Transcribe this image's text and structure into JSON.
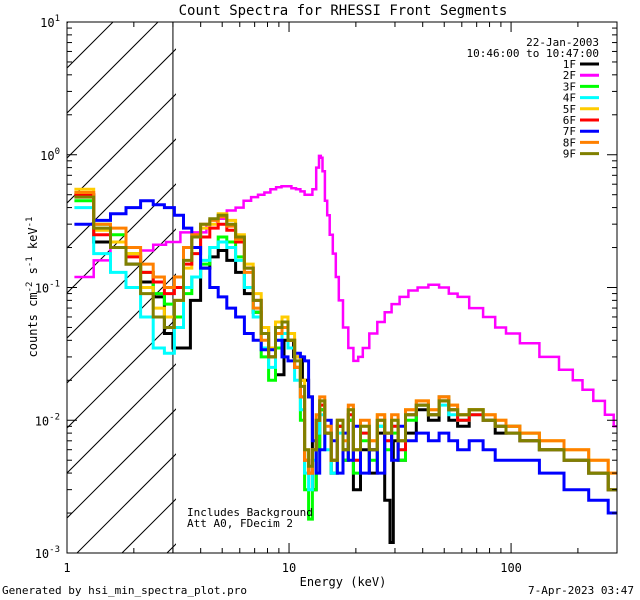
{
  "chart_data": {
    "type": "line",
    "title": "Count Spectra for RHESSI Front Segments",
    "xlabel": "Energy (keV)",
    "ylabel": "counts cm-2 s-1 keV-1",
    "ylabel_parts": {
      "base": "counts cm",
      "e1": "-2",
      "mid1": " s",
      "e2": "-1",
      "mid2": " keV",
      "e3": "-1"
    },
    "x_scale": "log",
    "y_scale": "log",
    "xlim": [
      1,
      300
    ],
    "ylim": [
      0.001,
      10
    ],
    "x_ticks": [
      {
        "v": 1,
        "label": "1"
      },
      {
        "v": 10,
        "label": "10"
      },
      {
        "v": 100,
        "label": "100"
      }
    ],
    "y_ticks": [
      {
        "v": 0.001,
        "base": "10",
        "exp": "-3"
      },
      {
        "v": 0.01,
        "base": "10",
        "exp": "-2"
      },
      {
        "v": 0.1,
        "base": "10",
        "exp": "-1"
      },
      {
        "v": 1,
        "base": "10",
        "exp": "0"
      },
      {
        "v": 10,
        "base": "10",
        "exp": "1"
      }
    ],
    "date_label": "22-Jan-2003",
    "time_label": "10:46:00 to 10:47:00",
    "annotations": [
      "Includes Background",
      "Att A0, FDecim 2"
    ],
    "shaded_region": {
      "x_from": 1,
      "x_to": 3
    },
    "legend_position": "top-right",
    "series": [
      {
        "name": "1F",
        "color": "#000000",
        "x": [
          1.2,
          1.45,
          1.7,
          2.0,
          2.3,
          2.6,
          2.9,
          3.1,
          3.4,
          3.8,
          4.2,
          4.6,
          5.0,
          5.5,
          6.0,
          6.6,
          7.2,
          7.8,
          8.4,
          9.0,
          10.0,
          11.0,
          12.0,
          12.5,
          13.0,
          13.5,
          14.0,
          15.0,
          16.0,
          17.0,
          18.0,
          19.0,
          20.0,
          22.0,
          24.0,
          26.0,
          28.0,
          29.0,
          30.0,
          32.0,
          35.0,
          40.0,
          45.0,
          50.0,
          55.0,
          60.0,
          70.0,
          80.0,
          90.0,
          100.0,
          120.0,
          150.0,
          200.0,
          250.0,
          300.0
        ],
        "y": [
          0.5,
          0.22,
          0.2,
          0.15,
          0.11,
          0.085,
          0.045,
          0.035,
          0.035,
          0.08,
          0.14,
          0.17,
          0.19,
          0.16,
          0.13,
          0.09,
          0.065,
          0.05,
          0.03,
          0.022,
          0.04,
          0.03,
          0.02,
          0.015,
          0.003,
          0.006,
          0.012,
          0.008,
          0.004,
          0.009,
          0.005,
          0.01,
          0.003,
          0.006,
          0.004,
          0.008,
          0.0025,
          0.0012,
          0.007,
          0.005,
          0.008,
          0.012,
          0.01,
          0.015,
          0.01,
          0.009,
          0.012,
          0.01,
          0.008,
          0.009,
          0.007,
          0.006,
          0.005,
          0.004,
          0.003
        ]
      },
      {
        "name": "2F",
        "color": "#ff00ff",
        "x": [
          1.2,
          1.45,
          1.7,
          2.0,
          2.3,
          2.6,
          3.0,
          3.5,
          4.0,
          4.5,
          5.0,
          5.5,
          6.0,
          6.5,
          7.0,
          7.5,
          8.0,
          8.5,
          9.0,
          9.5,
          10.0,
          10.5,
          11.0,
          11.5,
          12.0,
          12.5,
          13.0,
          13.5,
          13.8,
          14.0,
          14.3,
          14.7,
          15.0,
          15.5,
          16.0,
          16.5,
          17.0,
          18.0,
          19.0,
          20.0,
          21.0,
          22.0,
          24.0,
          26.0,
          28.0,
          30.0,
          33.0,
          36.0,
          40.0,
          45.0,
          50.0,
          55.0,
          60.0,
          70.0,
          80.0,
          90.0,
          100.0,
          120.0,
          150.0,
          180.0,
          200.0,
          220.0,
          250.0,
          280.0,
          300.0
        ],
        "y": [
          0.12,
          0.16,
          0.2,
          0.2,
          0.19,
          0.21,
          0.22,
          0.26,
          0.26,
          0.3,
          0.33,
          0.38,
          0.4,
          0.45,
          0.48,
          0.5,
          0.52,
          0.55,
          0.57,
          0.58,
          0.58,
          0.56,
          0.55,
          0.53,
          0.5,
          0.5,
          0.55,
          0.8,
          0.98,
          0.95,
          0.75,
          0.45,
          0.35,
          0.25,
          0.18,
          0.12,
          0.08,
          0.05,
          0.035,
          0.028,
          0.03,
          0.035,
          0.045,
          0.055,
          0.065,
          0.075,
          0.085,
          0.095,
          0.1,
          0.105,
          0.1,
          0.09,
          0.085,
          0.07,
          0.06,
          0.05,
          0.045,
          0.038,
          0.03,
          0.024,
          0.02,
          0.017,
          0.014,
          0.011,
          0.009
        ]
      },
      {
        "name": "3F",
        "color": "#00ff00",
        "x": [
          1.2,
          1.45,
          1.7,
          2.0,
          2.3,
          2.6,
          2.9,
          3.2,
          3.5,
          3.8,
          4.2,
          4.6,
          5.0,
          5.5,
          6.0,
          6.6,
          7.2,
          7.8,
          8.4,
          9.0,
          9.6,
          10.2,
          11.0,
          11.5,
          12.0,
          12.5,
          13.0,
          13.5,
          14.0,
          15.0,
          16.0,
          17.0,
          18.0,
          19.0,
          20.0,
          22.0,
          24.0,
          26.0,
          28.0,
          30.0,
          32.0,
          35.0,
          40.0,
          45.0,
          50.0,
          55.0,
          60.0,
          70.0,
          80.0,
          90.0,
          100.0,
          120.0,
          150.0,
          200.0,
          250.0,
          300.0
        ],
        "y": [
          0.45,
          0.3,
          0.25,
          0.18,
          0.13,
          0.09,
          0.075,
          0.06,
          0.09,
          0.12,
          0.15,
          0.2,
          0.24,
          0.22,
          0.17,
          0.1,
          0.065,
          0.03,
          0.02,
          0.035,
          0.05,
          0.04,
          0.025,
          0.01,
          0.003,
          0.0018,
          0.003,
          0.006,
          0.012,
          0.008,
          0.004,
          0.009,
          0.005,
          0.01,
          0.004,
          0.007,
          0.005,
          0.009,
          0.006,
          0.008,
          0.005,
          0.01,
          0.013,
          0.011,
          0.014,
          0.012,
          0.01,
          0.012,
          0.01,
          0.009,
          0.009,
          0.008,
          0.006,
          0.005,
          0.004,
          0.003
        ]
      },
      {
        "name": "4F",
        "color": "#00ffff",
        "x": [
          1.2,
          1.45,
          1.7,
          2.0,
          2.3,
          2.6,
          2.9,
          3.2,
          3.5,
          3.8,
          4.2,
          4.6,
          5.0,
          5.5,
          6.0,
          6.6,
          7.2,
          7.8,
          8.4,
          9.0,
          9.6,
          10.2,
          11.0,
          11.5,
          12.0,
          12.5,
          13.0,
          13.5,
          14.0,
          15.0,
          16.0,
          17.0,
          18.0,
          19.0,
          20.0,
          22.0,
          24.0,
          26.0,
          28.0,
          30.0,
          32.0,
          35.0,
          40.0,
          45.0,
          50.0,
          55.0,
          60.0,
          70.0,
          80.0,
          90.0,
          100.0,
          120.0,
          150.0,
          200.0,
          250.0,
          300.0
        ],
        "y": [
          0.4,
          0.18,
          0.13,
          0.1,
          0.06,
          0.035,
          0.032,
          0.05,
          0.1,
          0.12,
          0.16,
          0.2,
          0.22,
          0.2,
          0.16,
          0.1,
          0.06,
          0.035,
          0.025,
          0.04,
          0.045,
          0.035,
          0.02,
          0.012,
          0.004,
          0.003,
          0.005,
          0.008,
          0.011,
          0.006,
          0.004,
          0.008,
          0.006,
          0.011,
          0.005,
          0.008,
          0.006,
          0.009,
          0.007,
          0.009,
          0.006,
          0.011,
          0.013,
          0.011,
          0.013,
          0.011,
          0.01,
          0.011,
          0.01,
          0.009,
          0.008,
          0.007,
          0.006,
          0.005,
          0.004,
          0.003
        ]
      },
      {
        "name": "5F",
        "color": "#ffcc00",
        "x": [
          1.2,
          1.45,
          1.7,
          2.0,
          2.3,
          2.6,
          2.9,
          3.2,
          3.5,
          3.8,
          4.2,
          4.6,
          5.0,
          5.5,
          6.0,
          6.6,
          7.2,
          7.8,
          8.4,
          9.0,
          9.6,
          10.2,
          11.0,
          11.5,
          12.0,
          12.5,
          13.0,
          13.5,
          14.0,
          15.0,
          16.0,
          17.0,
          18.0,
          19.0,
          20.0,
          22.0,
          24.0,
          26.0,
          28.0,
          30.0,
          32.0,
          35.0,
          40.0,
          45.0,
          50.0,
          55.0,
          60.0,
          70.0,
          80.0,
          90.0,
          100.0,
          120.0,
          150.0,
          200.0,
          250.0,
          300.0
        ],
        "y": [
          0.55,
          0.27,
          0.22,
          0.18,
          0.1,
          0.07,
          0.06,
          0.08,
          0.14,
          0.2,
          0.28,
          0.3,
          0.36,
          0.32,
          0.25,
          0.15,
          0.09,
          0.05,
          0.035,
          0.055,
          0.06,
          0.045,
          0.03,
          0.02,
          0.006,
          0.004,
          0.006,
          0.01,
          0.014,
          0.008,
          0.005,
          0.01,
          0.006,
          0.012,
          0.006,
          0.009,
          0.007,
          0.011,
          0.008,
          0.01,
          0.007,
          0.012,
          0.014,
          0.012,
          0.015,
          0.013,
          0.011,
          0.012,
          0.011,
          0.01,
          0.009,
          0.008,
          0.007,
          0.006,
          0.005,
          0.004
        ]
      },
      {
        "name": "6F",
        "color": "#ff0000",
        "x": [
          1.2,
          1.45,
          1.7,
          2.0,
          2.3,
          2.6,
          2.9,
          3.2,
          3.5,
          3.8,
          4.2,
          4.6,
          5.0,
          5.5,
          6.0,
          6.6,
          7.2,
          7.8,
          8.4,
          9.0,
          9.6,
          10.2,
          11.0,
          11.5,
          12.0,
          12.5,
          13.0,
          13.5,
          14.0,
          15.0,
          16.0,
          17.0,
          18.0,
          19.0,
          20.0,
          22.0,
          24.0,
          26.0,
          28.0,
          30.0,
          32.0,
          35.0,
          40.0,
          45.0,
          50.0,
          55.0,
          60.0,
          70.0,
          80.0,
          90.0,
          100.0,
          120.0,
          150.0,
          200.0,
          250.0,
          300.0
        ],
        "y": [
          0.5,
          0.25,
          0.2,
          0.17,
          0.13,
          0.11,
          0.09,
          0.1,
          0.15,
          0.18,
          0.24,
          0.28,
          0.3,
          0.27,
          0.22,
          0.14,
          0.08,
          0.045,
          0.03,
          0.045,
          0.05,
          0.04,
          0.025,
          0.015,
          0.005,
          0.004,
          0.006,
          0.01,
          0.013,
          0.008,
          0.005,
          0.009,
          0.006,
          0.011,
          0.005,
          0.008,
          0.006,
          0.01,
          0.007,
          0.009,
          0.006,
          0.011,
          0.013,
          0.011,
          0.014,
          0.012,
          0.01,
          0.011,
          0.01,
          0.009,
          0.008,
          0.007,
          0.006,
          0.005,
          0.004,
          0.003
        ]
      },
      {
        "name": "7F",
        "color": "#0000ff",
        "x": [
          1.2,
          1.45,
          1.7,
          2.0,
          2.3,
          2.6,
          2.9,
          3.2,
          3.5,
          3.8,
          4.2,
          4.6,
          5.0,
          5.5,
          6.0,
          6.6,
          7.2,
          7.8,
          8.4,
          9.0,
          9.6,
          10.2,
          11.0,
          11.5,
          12.0,
          12.5,
          13.0,
          13.5,
          14.0,
          15.0,
          16.0,
          17.0,
          18.0,
          19.0,
          20.0,
          22.0,
          24.0,
          26.0,
          28.0,
          30.0,
          32.0,
          35.0,
          40.0,
          45.0,
          50.0,
          55.0,
          60.0,
          70.0,
          80.0,
          90.0,
          100.0,
          120.0,
          150.0,
          200.0,
          250.0,
          300.0
        ],
        "y": [
          0.3,
          0.32,
          0.36,
          0.4,
          0.45,
          0.42,
          0.4,
          0.35,
          0.28,
          0.2,
          0.14,
          0.1,
          0.085,
          0.07,
          0.06,
          0.045,
          0.04,
          0.034,
          0.034,
          0.04,
          0.03,
          0.028,
          0.032,
          0.03,
          0.028,
          0.015,
          0.007,
          0.004,
          0.006,
          0.01,
          0.007,
          0.004,
          0.008,
          0.005,
          0.009,
          0.004,
          0.006,
          0.004,
          0.008,
          0.005,
          0.009,
          0.007,
          0.008,
          0.007,
          0.008,
          0.007,
          0.006,
          0.007,
          0.006,
          0.005,
          0.005,
          0.005,
          0.004,
          0.003,
          0.0025,
          0.002
        ]
      },
      {
        "name": "8F",
        "color": "#ff8000",
        "x": [
          1.2,
          1.45,
          1.7,
          2.0,
          2.3,
          2.6,
          2.9,
          3.2,
          3.5,
          3.8,
          4.2,
          4.6,
          5.0,
          5.5,
          6.0,
          6.6,
          7.2,
          7.8,
          8.4,
          9.0,
          9.6,
          10.2,
          11.0,
          11.5,
          12.0,
          12.5,
          13.0,
          13.5,
          14.0,
          15.0,
          16.0,
          17.0,
          18.0,
          19.0,
          20.0,
          22.0,
          24.0,
          26.0,
          28.0,
          30.0,
          32.0,
          35.0,
          40.0,
          45.0,
          50.0,
          55.0,
          60.0,
          70.0,
          80.0,
          90.0,
          100.0,
          120.0,
          150.0,
          200.0,
          250.0,
          300.0
        ],
        "y": [
          0.52,
          0.3,
          0.28,
          0.2,
          0.15,
          0.12,
          0.1,
          0.12,
          0.2,
          0.25,
          0.3,
          0.32,
          0.34,
          0.29,
          0.23,
          0.13,
          0.07,
          0.04,
          0.03,
          0.045,
          0.05,
          0.04,
          0.025,
          0.015,
          0.005,
          0.004,
          0.006,
          0.011,
          0.015,
          0.009,
          0.005,
          0.01,
          0.007,
          0.013,
          0.006,
          0.01,
          0.007,
          0.011,
          0.008,
          0.011,
          0.007,
          0.012,
          0.014,
          0.012,
          0.015,
          0.013,
          0.011,
          0.012,
          0.011,
          0.01,
          0.009,
          0.008,
          0.007,
          0.006,
          0.005,
          0.004
        ]
      },
      {
        "name": "9F",
        "color": "#808000",
        "x": [
          1.2,
          1.45,
          1.7,
          2.0,
          2.3,
          2.6,
          2.9,
          3.2,
          3.5,
          3.8,
          4.2,
          4.6,
          5.0,
          5.5,
          6.0,
          6.6,
          7.2,
          7.8,
          8.4,
          9.0,
          9.6,
          10.2,
          11.0,
          11.5,
          12.0,
          12.5,
          13.0,
          13.5,
          14.0,
          15.0,
          16.0,
          17.0,
          18.0,
          19.0,
          20.0,
          22.0,
          24.0,
          26.0,
          28.0,
          30.0,
          32.0,
          35.0,
          40.0,
          45.0,
          50.0,
          55.0,
          60.0,
          70.0,
          80.0,
          90.0,
          100.0,
          120.0,
          150.0,
          200.0,
          250.0,
          300.0
        ],
        "y": [
          0.48,
          0.28,
          0.2,
          0.15,
          0.09,
          0.06,
          0.05,
          0.08,
          0.16,
          0.24,
          0.3,
          0.33,
          0.35,
          0.3,
          0.24,
          0.14,
          0.08,
          0.045,
          0.03,
          0.05,
          0.055,
          0.04,
          0.028,
          0.018,
          0.006,
          0.0045,
          0.006,
          0.01,
          0.014,
          0.008,
          0.005,
          0.01,
          0.006,
          0.012,
          0.006,
          0.009,
          0.006,
          0.01,
          0.008,
          0.01,
          0.007,
          0.011,
          0.013,
          0.011,
          0.014,
          0.012,
          0.011,
          0.012,
          0.01,
          0.009,
          0.008,
          0.007,
          0.006,
          0.005,
          0.004,
          0.003
        ]
      }
    ]
  },
  "footer": {
    "generated_by": "Generated by hsi_min_spectra_plot.pro",
    "timestamp": "7-Apr-2023 03:47"
  }
}
